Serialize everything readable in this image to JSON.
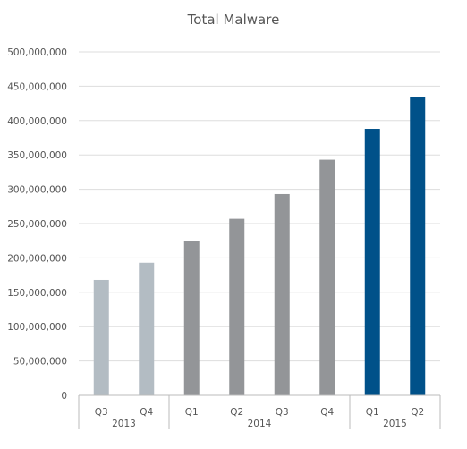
{
  "chart_data": {
    "type": "bar",
    "title": "Total Malware",
    "xlabel": "",
    "ylabel": "",
    "ylim": [
      0,
      500000000
    ],
    "yticks": [
      0,
      50000000,
      100000000,
      150000000,
      200000000,
      250000000,
      300000000,
      350000000,
      400000000,
      450000000,
      500000000
    ],
    "ytick_labels": [
      "0",
      "50,000,000",
      "100,000,000",
      "150,000,000",
      "200,000,000",
      "250,000,000",
      "300,000,000",
      "350,000,000",
      "400,000,000",
      "450,000,000",
      "500,000,000"
    ],
    "grid": true,
    "legend": "none",
    "categories": [
      "Q3",
      "Q4",
      "Q1",
      "Q2",
      "Q3",
      "Q4",
      "Q1",
      "Q2"
    ],
    "values": [
      168000000,
      193000000,
      225000000,
      257000000,
      293000000,
      343000000,
      388000000,
      434000000
    ],
    "groups": [
      {
        "label": "2013",
        "count": 2
      },
      {
        "label": "2014",
        "count": 4
      },
      {
        "label": "2015",
        "count": 2
      }
    ],
    "colors": [
      "#b3bcc3",
      "#b3bcc3",
      "#939598",
      "#939598",
      "#939598",
      "#939598",
      "#005189",
      "#005189"
    ]
  }
}
